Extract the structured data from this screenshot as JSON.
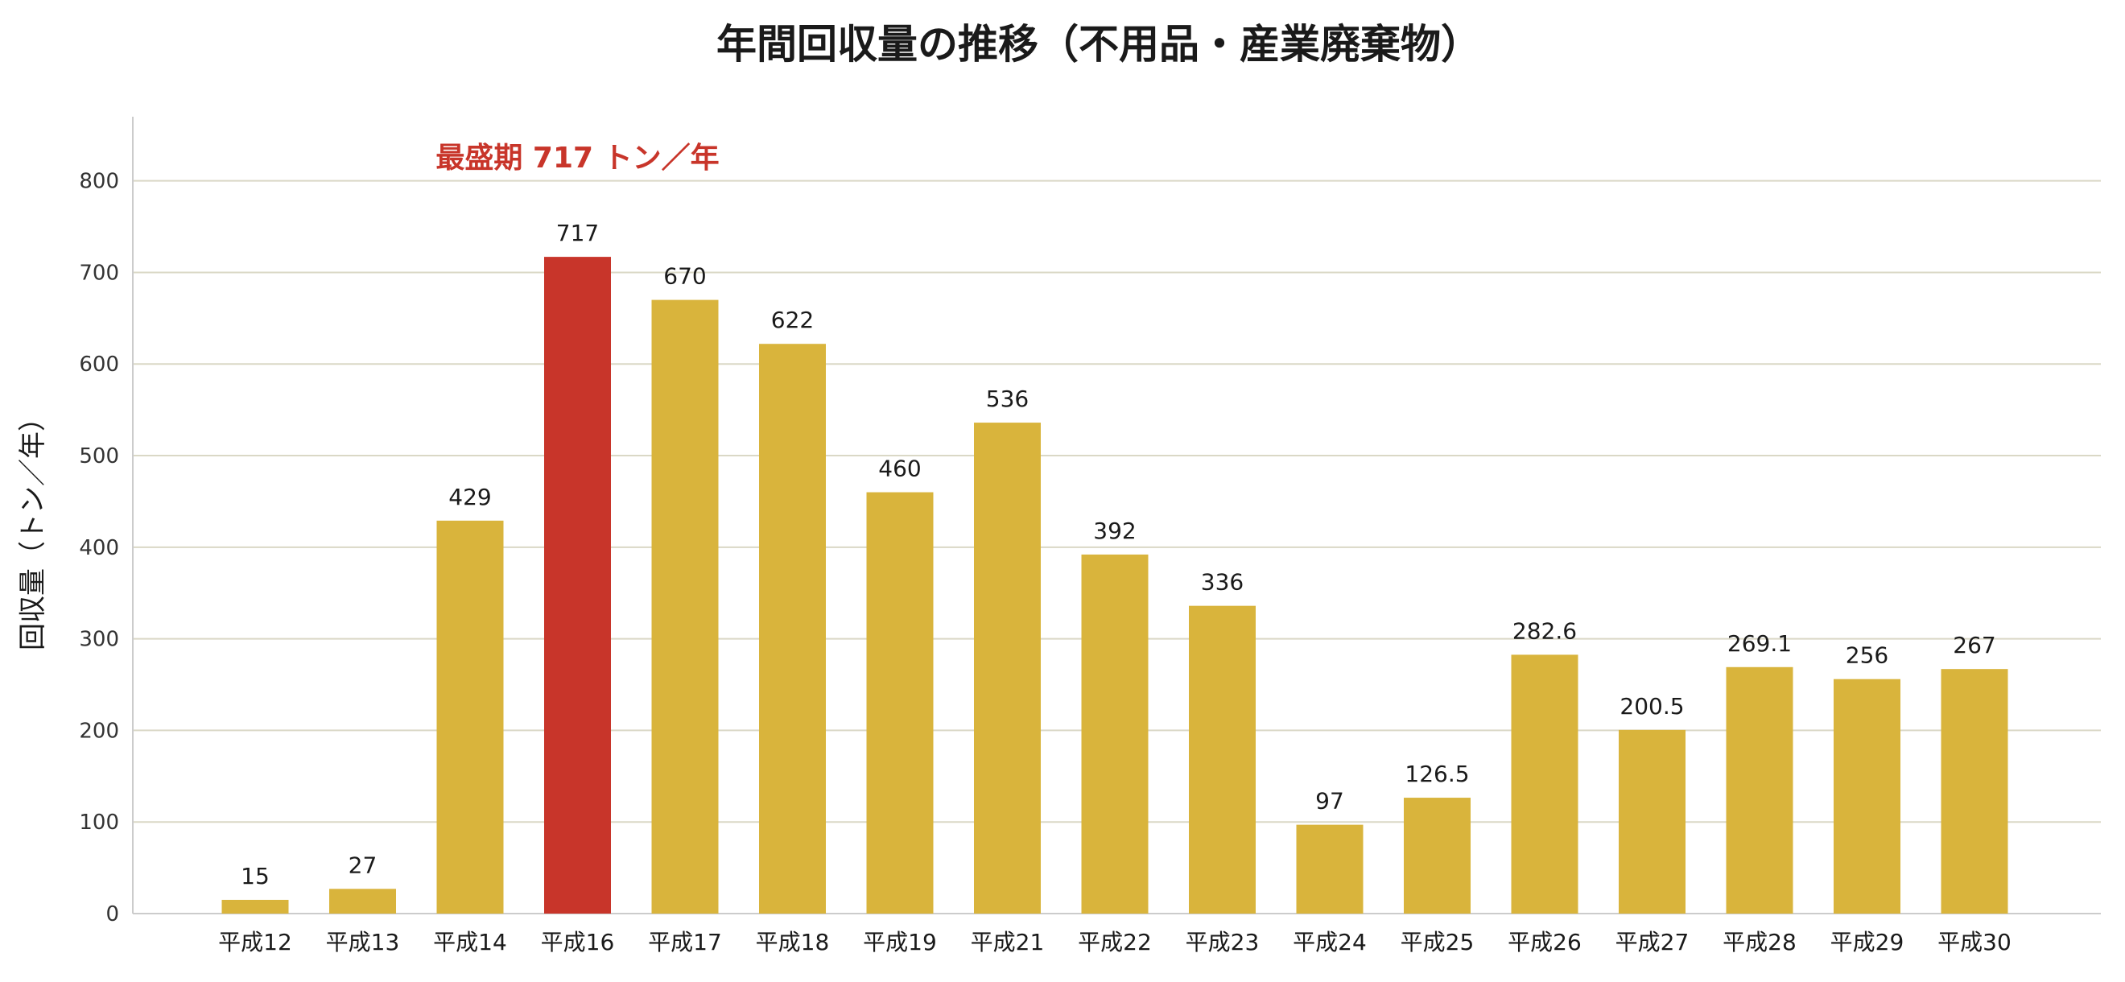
{
  "chart_data": {
    "type": "bar",
    "title": "年間回収量の推移（不用品・産業廃棄物）",
    "xlabel": "",
    "ylabel": "回収量（トン／年）",
    "ylim": [
      0,
      870
    ],
    "yticks": [
      0,
      100,
      200,
      300,
      400,
      500,
      600,
      700,
      800
    ],
    "grid": true,
    "categories": [
      "平成12",
      "平成13",
      "平成14",
      "平成16",
      "平成17",
      "平成18",
      "平成19",
      "平成21",
      "平成22",
      "平成23",
      "平成24",
      "平成25",
      "平成26",
      "平成27",
      "平成28",
      "平成29",
      "平成30"
    ],
    "values": [
      15,
      27,
      429,
      717,
      670,
      622,
      460,
      536,
      392,
      336,
      97,
      126.5,
      282.6,
      200.5,
      269.1,
      256,
      267
    ],
    "value_labels": [
      "15",
      "27",
      "429",
      "717",
      "670",
      "622",
      "460",
      "536",
      "392",
      "336",
      "97",
      "126.5",
      "282.6",
      "200.5",
      "269.1",
      "256",
      "267"
    ],
    "highlight_index": 3,
    "annotation": "最盛期 717 トン／年",
    "colors": {
      "bar": "#D9B43C",
      "highlight": "#C8352A",
      "grid": "#DAD8C6",
      "axis": "#CCCCCC"
    }
  }
}
